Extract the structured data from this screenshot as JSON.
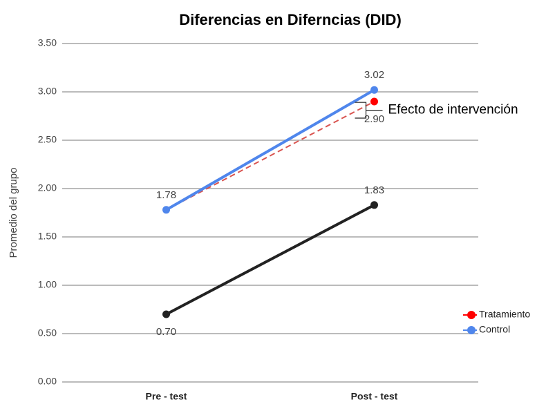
{
  "chart_data": {
    "type": "line",
    "title": "Diferencias en Diferncias (DID)",
    "y_label": "Promedio del grupo",
    "categories": [
      "Pre - test",
      "Post - test"
    ],
    "series": [
      {
        "color": "#222222",
        "values": [
          0.7,
          1.83
        ],
        "value_labels": [
          "0.70",
          "1.83"
        ]
      },
      {
        "name": "Tratamiento",
        "color": "#ff0000",
        "dashed": true,
        "values": [
          1.78,
          2.9
        ],
        "value_labels": [
          null,
          "2.90"
        ]
      },
      {
        "name": "Control",
        "color": "#4f86ec",
        "values": [
          1.78,
          3.02
        ],
        "value_labels": [
          "1.78",
          "3.02"
        ]
      }
    ],
    "annotation": "Efecto de intervención",
    "ylim": [
      0,
      3.5
    ],
    "yticks": [
      {
        "value": 0,
        "label": "0.00"
      },
      {
        "value": 0.5,
        "label": "0.50"
      },
      {
        "value": 1,
        "label": "1.00"
      },
      {
        "value": 1.5,
        "label": "1.50"
      },
      {
        "value": 2,
        "label": "2.00"
      },
      {
        "value": 2.5,
        "label": "2.50"
      },
      {
        "value": 3,
        "label": "3.00"
      },
      {
        "value": 3.5,
        "label": "3.50"
      }
    ],
    "grid": true,
    "legend": "right"
  }
}
